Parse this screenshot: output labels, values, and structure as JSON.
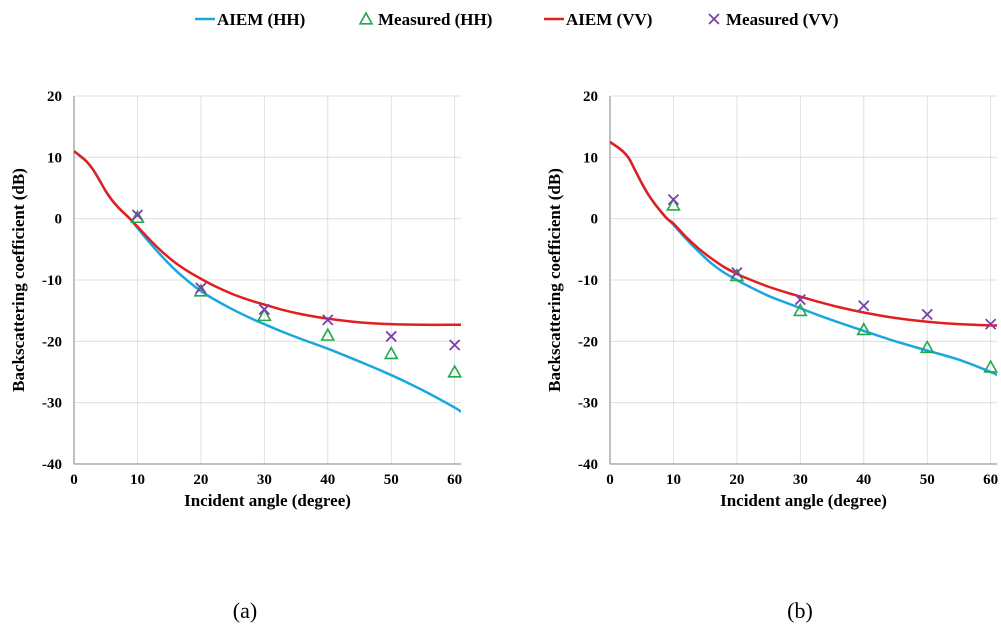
{
  "legend": {
    "entries": [
      {
        "label": "AIEM (HH)",
        "kind": "line",
        "color": "#1aa7e0"
      },
      {
        "label": "Measured (HH)",
        "kind": "triangle",
        "color": "#20a84a"
      },
      {
        "label": "AIEM (VV)",
        "kind": "line",
        "color": "#e11f1f"
      },
      {
        "label": "Measured (VV)",
        "kind": "cross",
        "color": "#7b3fa8"
      }
    ]
  },
  "colors": {
    "aiem_hh": "#1aa7e0",
    "aiem_vv": "#e11f1f",
    "measured_hh": "#20a84a",
    "measured_vv": "#7b3fa8",
    "grid": "#d9d9d9",
    "axis": "#808080"
  },
  "captions": {
    "a": "(a)",
    "b": "(b)"
  },
  "chart_data": [
    {
      "type": "line",
      "xlabel": "Incident angle (degree)",
      "ylabel": "Backscattering coefficient (dB)",
      "xlim": [
        0,
        61
      ],
      "ylim": [
        -40,
        20
      ],
      "xticks": [
        0,
        10,
        20,
        30,
        40,
        50,
        60
      ],
      "yticks": [
        -40,
        -30,
        -20,
        -10,
        0,
        10,
        20
      ],
      "grid": true,
      "series": [
        {
          "name": "AIEM (HH)",
          "style": "line",
          "x": [
            0,
            1,
            2,
            3,
            4,
            5,
            6,
            7,
            8,
            9,
            10,
            12,
            14,
            16,
            18,
            20,
            22,
            25,
            28,
            30,
            33,
            36,
            40,
            45,
            50,
            55,
            60,
            61
          ],
          "y": [
            11,
            10.2,
            9.3,
            8,
            6.3,
            4.5,
            3,
            1.8,
            0.8,
            -0.2,
            -1.5,
            -4,
            -6.3,
            -8.4,
            -10.2,
            -11.8,
            -13.1,
            -14.8,
            -16.3,
            -17.2,
            -18.5,
            -19.7,
            -21.2,
            -23.3,
            -25.5,
            -28,
            -30.8,
            -31.5
          ]
        },
        {
          "name": "Measured (HH)",
          "style": "triangle",
          "x": [
            10,
            20,
            30,
            40,
            50,
            60
          ],
          "y": [
            0.2,
            -11.8,
            -15.8,
            -19,
            -22,
            -25
          ]
        },
        {
          "name": "AIEM (VV)",
          "style": "line",
          "x": [
            0,
            1,
            2,
            3,
            4,
            5,
            6,
            7,
            8,
            9,
            10,
            12,
            14,
            16,
            18,
            20,
            22,
            25,
            28,
            30,
            33,
            36,
            40,
            45,
            50,
            55,
            60,
            61
          ],
          "y": [
            11,
            10.2,
            9.3,
            8,
            6.3,
            4.5,
            3,
            1.8,
            0.8,
            -0.2,
            -1.3,
            -3.5,
            -5.5,
            -7.2,
            -8.6,
            -9.8,
            -10.9,
            -12.3,
            -13.4,
            -14,
            -14.9,
            -15.6,
            -16.3,
            -16.9,
            -17.2,
            -17.3,
            -17.3,
            -17.3
          ]
        },
        {
          "name": "Measured (VV)",
          "style": "cross",
          "x": [
            10,
            20,
            30,
            40,
            50,
            60
          ],
          "y": [
            0.6,
            -11.3,
            -14.8,
            -16.5,
            -19.2,
            -20.6
          ]
        }
      ]
    },
    {
      "type": "line",
      "xlabel": "Incident angle (degree)",
      "ylabel": "Backscattering coefficient (dB)",
      "xlim": [
        0,
        61
      ],
      "ylim": [
        -40,
        20
      ],
      "xticks": [
        0,
        10,
        20,
        30,
        40,
        50,
        60
      ],
      "yticks": [
        -40,
        -30,
        -20,
        -10,
        0,
        10,
        20
      ],
      "grid": true,
      "series": [
        {
          "name": "AIEM (HH)",
          "style": "line",
          "x": [
            0,
            1,
            2,
            3,
            4,
            5,
            6,
            7,
            8,
            9,
            10,
            12,
            14,
            16,
            18,
            20,
            22,
            25,
            28,
            30,
            33,
            36,
            40,
            45,
            50,
            55,
            60,
            61
          ],
          "y": [
            12.5,
            11.8,
            11,
            9.8,
            7.8,
            5.8,
            4,
            2.5,
            1.2,
            0,
            -1,
            -3.3,
            -5.4,
            -7.3,
            -8.8,
            -10,
            -11.1,
            -12.6,
            -13.8,
            -14.6,
            -15.8,
            -16.9,
            -18.3,
            -20,
            -21.5,
            -23,
            -25,
            -25.5
          ]
        },
        {
          "name": "Measured (HH)",
          "style": "triangle",
          "x": [
            10,
            20,
            30,
            40,
            50,
            60
          ],
          "y": [
            2.2,
            -9.3,
            -15,
            -18.1,
            -21,
            -24.2
          ]
        },
        {
          "name": "AIEM (VV)",
          "style": "line",
          "x": [
            0,
            1,
            2,
            3,
            4,
            5,
            6,
            7,
            8,
            9,
            10,
            12,
            14,
            16,
            18,
            20,
            22,
            25,
            28,
            30,
            33,
            36,
            40,
            45,
            50,
            55,
            60,
            61
          ],
          "y": [
            12.5,
            11.8,
            11,
            9.8,
            7.8,
            5.8,
            4,
            2.5,
            1.2,
            0,
            -0.8,
            -3,
            -4.9,
            -6.5,
            -7.9,
            -9,
            -9.9,
            -11.1,
            -12.1,
            -12.7,
            -13.6,
            -14.4,
            -15.3,
            -16.2,
            -16.8,
            -17.2,
            -17.4,
            -17.4
          ]
        },
        {
          "name": "Measured (VV)",
          "style": "cross",
          "x": [
            10,
            20,
            30,
            40,
            50,
            60
          ],
          "y": [
            3.1,
            -8.8,
            -13.2,
            -14.2,
            -15.6,
            -17.2
          ]
        }
      ]
    }
  ]
}
